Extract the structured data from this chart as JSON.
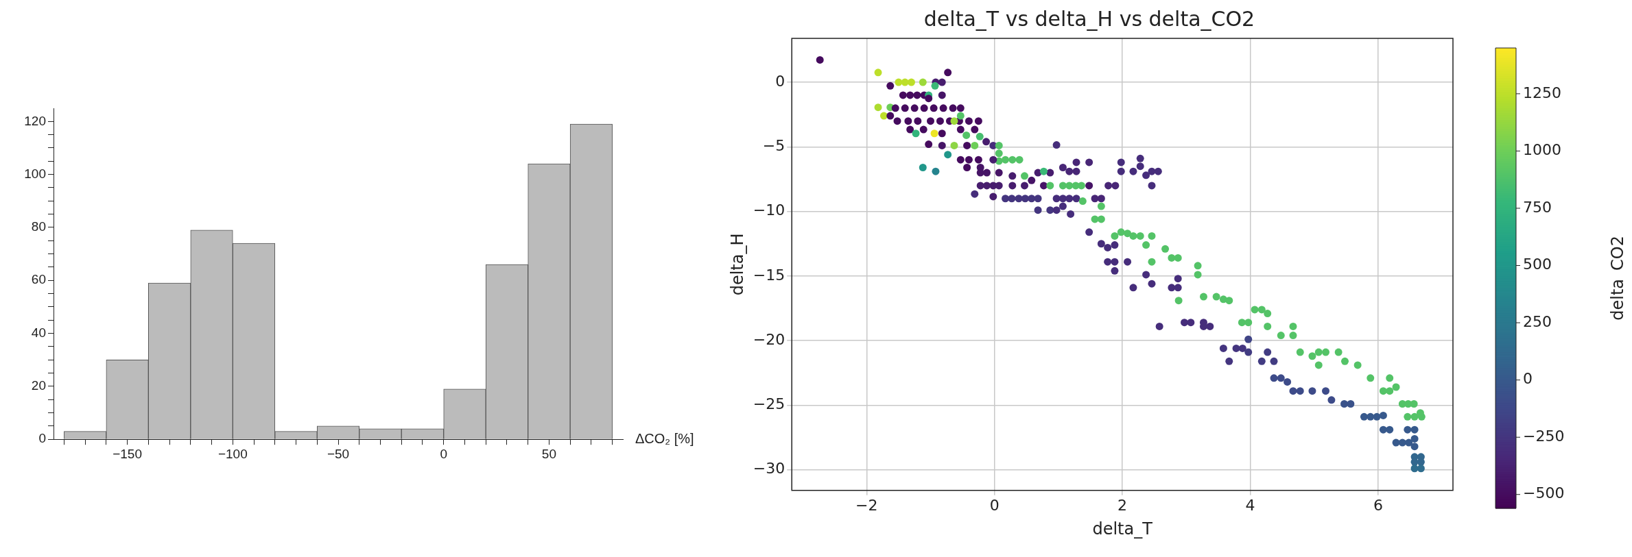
{
  "chart_data": [
    {
      "type": "histogram",
      "xlabel": "ΔCO₂ [%]",
      "color": "#bbbbbb",
      "bins": [
        -180,
        -160,
        -140,
        -120,
        -100,
        -80,
        -60,
        -40,
        -20,
        0,
        20,
        40,
        60,
        80
      ],
      "values": [
        3,
        30,
        59,
        79,
        74,
        3,
        5,
        4,
        4,
        19,
        66,
        104,
        119
      ],
      "xlim": [
        -185,
        85
      ],
      "ylim": [
        0,
        125
      ],
      "xticks": [
        {
          "value": -180,
          "label": null
        },
        {
          "value": -170,
          "label": null
        },
        {
          "value": -160,
          "label": null
        },
        -150,
        {
          "value": -140,
          "label": null
        },
        {
          "value": -130,
          "label": null
        },
        {
          "value": -120,
          "label": null
        },
        {
          "value": -110,
          "label": null
        },
        -100,
        {
          "value": -90,
          "label": null
        },
        {
          "value": -80,
          "label": null
        },
        {
          "value": -70,
          "label": null
        },
        {
          "value": -60,
          "label": null
        },
        -50,
        {
          "value": -40,
          "label": null
        },
        {
          "value": -30,
          "label": null
        },
        {
          "value": -20,
          "label": null
        },
        {
          "value": -10,
          "label": null
        },
        0,
        {
          "value": 10,
          "label": null
        },
        {
          "value": 20,
          "label": null
        },
        {
          "value": 30,
          "label": null
        },
        {
          "value": 40,
          "label": null
        },
        50,
        {
          "value": 60,
          "label": null
        },
        {
          "value": 70,
          "label": null
        },
        {
          "value": 80,
          "label": null
        }
      ],
      "yticks": [
        0,
        {
          "value": 5,
          "label": null
        },
        {
          "value": 10,
          "label": null
        },
        {
          "value": 15,
          "label": null
        },
        20,
        {
          "value": 25,
          "label": null
        },
        {
          "value": 30,
          "label": null
        },
        {
          "value": 35,
          "label": null
        },
        40,
        {
          "value": 45,
          "label": null
        },
        {
          "value": 50,
          "label": null
        },
        {
          "value": 55,
          "label": null
        },
        60,
        {
          "value": 65,
          "label": null
        },
        {
          "value": 70,
          "label": null
        },
        {
          "value": 75,
          "label": null
        },
        80,
        {
          "value": 85,
          "label": null
        },
        {
          "value": 90,
          "label": null
        },
        {
          "value": 95,
          "label": null
        },
        100,
        {
          "value": 105,
          "label": null
        },
        {
          "value": 110,
          "label": null
        },
        {
          "value": 115,
          "label": null
        },
        120
      ],
      "grid": false
    },
    {
      "type": "scatter",
      "title": "delta_T vs delta_H vs delta_CO2",
      "xlabel": "delta_T",
      "ylabel": "delta_H",
      "clabel": "delta_CO2",
      "marker": "circle",
      "grid": true,
      "xlim": [
        -3.17,
        7.17
      ],
      "ylim": [
        -31.6,
        3.4
      ],
      "xticks": [
        -2,
        0,
        2,
        4,
        6
      ],
      "yticks": [
        -30,
        -25,
        -20,
        -15,
        -10,
        -5,
        0
      ],
      "clim": [
        -560,
        1450
      ],
      "cticks": [
        -500,
        -250,
        0,
        250,
        500,
        750,
        1000,
        1250
      ],
      "x": [
        -2.73,
        -1.82,
        -0.73,
        -1.63,
        -1.5,
        -1.4,
        -1.3,
        -1.12,
        -0.92,
        -0.82,
        -0.93,
        -1.43,
        -1.32,
        -1.21,
        -1.1,
        -1.03,
        -0.82,
        -1.03,
        -1.82,
        -1.63,
        -1.55,
        -1.4,
        -1.25,
        -1.1,
        -0.95,
        -0.8,
        -0.65,
        -0.53,
        -1.73,
        -1.63,
        -1.52,
        -1.35,
        -1.2,
        -1.0,
        -0.85,
        -0.7,
        -0.55,
        -0.4,
        -0.25,
        -0.63,
        -0.53,
        -1.32,
        -1.23,
        -1.11,
        -0.94,
        -0.82,
        -0.53,
        -0.44,
        -0.31,
        -0.23,
        -1.03,
        -0.82,
        -0.73,
        -0.63,
        -0.43,
        -0.31,
        -0.13,
        -0.02,
        0.07,
        0.07,
        0.07,
        -0.53,
        -0.4,
        -0.25,
        -0.02,
        0.17,
        0.28,
        0.39,
        -1.12,
        -0.92,
        -0.43,
        -0.22,
        -0.22,
        -0.12,
        0.07,
        0.68,
        0.87,
        0.77,
        0.28,
        0.47,
        0.58,
        1.07,
        1.28,
        1.48,
        1.17,
        1.28,
        0.97,
        -0.22,
        -0.12,
        -0.02,
        0.07,
        0.28,
        0.47,
        0.77,
        0.87,
        1.07,
        1.17,
        1.27,
        1.36,
        1.48,
        1.78,
        1.89,
        -0.31,
        -0.02,
        0.17,
        0.27,
        0.38,
        0.48,
        0.58,
        0.68,
        0.97,
        1.07,
        1.17,
        1.28,
        1.38,
        1.57,
        1.67,
        0.68,
        0.87,
        0.97,
        1.07,
        1.19,
        1.67,
        1.57,
        1.67,
        1.48,
        1.98,
        1.98,
        2.17,
        2.28,
        2.28,
        2.37,
        2.46,
        2.56,
        2.46,
        1.67,
        1.77,
        1.88,
        1.77,
        1.88,
        1.88,
        2.08,
        1.88,
        1.98,
        2.08,
        2.17,
        2.28,
        2.46,
        2.37,
        2.46,
        2.67,
        2.77,
        2.87,
        2.37,
        2.46,
        2.17,
        2.77,
        2.87,
        2.87,
        2.58,
        2.97,
        3.07,
        3.27,
        3.27,
        3.37,
        2.88,
        3.18,
        3.18,
        3.27,
        3.47,
        3.58,
        3.67,
        4.07,
        4.18,
        4.27,
        3.87,
        3.97,
        4.27,
        4.48,
        4.67,
        4.67,
        3.97,
        3.58,
        3.78,
        3.88,
        3.67,
        3.97,
        4.27,
        4.18,
        4.37,
        4.37,
        4.48,
        4.58,
        4.67,
        4.78,
        4.97,
        5.18,
        5.27,
        5.47,
        5.57,
        4.78,
        4.97,
        5.07,
        5.18,
        5.07,
        5.38,
        5.48,
        5.68,
        5.88,
        6.18,
        6.08,
        6.18,
        6.28,
        6.38,
        6.47,
        6.56,
        6.46,
        6.57,
        6.68,
        6.66,
        5.78,
        5.88,
        5.98,
        6.08,
        6.08,
        6.18,
        6.46,
        6.57,
        6.28,
        6.38,
        6.48,
        6.57,
        6.57,
        6.57,
        6.67,
        6.57,
        6.67,
        6.57,
        6.67
      ],
      "values": [
        1.73,
        0.76,
        0.76,
        -0.28,
        0,
        0,
        0,
        0,
        0,
        0,
        -0.28,
        -1,
        -1,
        -1,
        -1,
        -1,
        -1,
        -1.25,
        -1.94,
        -1.94,
        -2,
        -2,
        -2,
        -2,
        -2,
        -2,
        -2,
        -2,
        -2.6,
        -2.6,
        -3,
        -3,
        -3,
        -3,
        -3,
        -3,
        -3,
        -3,
        -3,
        -3,
        -2.6,
        -3.66,
        -3.96,
        -3.66,
        -3.96,
        -3.96,
        -3.66,
        -4.1,
        -3.66,
        -4.2,
        -4.8,
        -4.9,
        -5.6,
        -4.9,
        -4.9,
        -4.9,
        -4.6,
        -4.9,
        -4.9,
        -5.5,
        -6.1,
        -6,
        -6,
        -6,
        -6,
        -6,
        -6,
        -6,
        -6.6,
        -6.9,
        -6.6,
        -6.6,
        -7,
        -7,
        -7,
        -7,
        -7,
        -6.9,
        -7.25,
        -7.25,
        -7.6,
        -6.6,
        -6.2,
        -6.2,
        -6.9,
        -6.9,
        -4.85,
        -8,
        -8,
        -8,
        -8,
        -8,
        -8,
        -8,
        -8,
        -8,
        -8,
        -8,
        -8,
        -8,
        -8,
        -8,
        -8.65,
        -8.85,
        -9,
        -9,
        -9,
        -9,
        -9,
        -9,
        -9,
        -9,
        -9,
        -9,
        -9.2,
        -9,
        -9,
        -9.9,
        -9.9,
        -9.9,
        -9.6,
        -10.2,
        -9.6,
        -10.6,
        -10.6,
        -11.6,
        -6.2,
        -6.9,
        -6.9,
        -5.9,
        -6.5,
        -7.2,
        -6.9,
        -6.9,
        -8,
        -12.5,
        -12.8,
        -12.6,
        -13.9,
        -13.9,
        -14.6,
        -13.9,
        -11.9,
        -11.6,
        -11.7,
        -11.9,
        -11.9,
        -11.9,
        -12.6,
        -13.9,
        -12.9,
        -13.6,
        -13.6,
        -14.9,
        -15.6,
        -15.9,
        -15.9,
        -15.9,
        -15.2,
        -18.9,
        -18.6,
        -18.6,
        -18.6,
        -18.9,
        -18.9,
        -16.9,
        -14.2,
        -14.9,
        -16.6,
        -16.6,
        -16.8,
        -16.9,
        -17.6,
        -17.6,
        -17.9,
        -18.6,
        -18.6,
        -18.9,
        -19.6,
        -18.9,
        -19.6,
        -19.9,
        -20.6,
        -20.6,
        -20.6,
        -21.6,
        -20.9,
        -20.9,
        -21.6,
        -21.6,
        -22.9,
        -22.9,
        -23.2,
        -23.9,
        -23.9,
        -23.9,
        -23.9,
        -24.6,
        -24.9,
        -24.9,
        -20.9,
        -21.2,
        -20.9,
        -20.9,
        -21.9,
        -20.9,
        -21.6,
        -21.9,
        -22.9,
        -22.9,
        -23.9,
        -23.9,
        -23.6,
        -24.9,
        -24.9,
        -24.9,
        -25.9,
        -25.9,
        -25.9,
        -25.6,
        -25.9,
        -25.9,
        -25.9,
        -25.8,
        -26.9,
        -26.9,
        -26.9,
        -26.9,
        -27.9,
        -27.9,
        -27.9,
        -27.6,
        -28.2,
        -29,
        -29,
        -29.4,
        -29.4,
        -29.9,
        -29.9
      ],
      "cvalues": [
        -500,
        1250,
        -500,
        -500,
        1250,
        1250,
        1250,
        1150,
        -400,
        -400,
        800,
        -500,
        -500,
        -500,
        -500,
        750,
        -450,
        -500,
        1200,
        1000,
        -500,
        -500,
        -500,
        -500,
        -500,
        -500,
        -500,
        -500,
        1250,
        -500,
        -500,
        -500,
        -500,
        -500,
        -500,
        -500,
        -500,
        -500,
        -500,
        1150,
        900,
        -500,
        750,
        -500,
        1400,
        -500,
        -500,
        900,
        -500,
        850,
        -500,
        -450,
        500,
        1100,
        -500,
        1000,
        -400,
        -300,
        900,
        900,
        900,
        -500,
        -500,
        -500,
        -400,
        900,
        900,
        900,
        500,
        350,
        -500,
        -450,
        -450,
        -450,
        -450,
        -400,
        -400,
        800,
        -400,
        900,
        -450,
        -350,
        -350,
        -350,
        -350,
        -350,
        -300,
        -400,
        -400,
        -400,
        -400,
        -400,
        -400,
        -450,
        900,
        900,
        900,
        900,
        900,
        -450,
        -350,
        -350,
        -300,
        -400,
        -250,
        -250,
        -250,
        -250,
        -250,
        -250,
        -300,
        -300,
        -300,
        -300,
        900,
        -350,
        -350,
        -250,
        -250,
        -300,
        -300,
        -300,
        900,
        900,
        900,
        -300,
        -300,
        -300,
        -300,
        -300,
        -300,
        -300,
        -300,
        -300,
        -300,
        -300,
        -300,
        -300,
        -300,
        -300,
        -300,
        -300,
        900,
        900,
        900,
        900,
        900,
        900,
        900,
        900,
        900,
        900,
        900,
        -300,
        -300,
        -300,
        -300,
        -300,
        -300,
        -300,
        -300,
        -300,
        -300,
        -300,
        -300,
        900,
        900,
        900,
        900,
        900,
        900,
        900,
        900,
        900,
        900,
        900,
        900,
        900,
        900,
        900,
        900,
        -150,
        -250,
        -250,
        -250,
        -250,
        -200,
        -200,
        -200,
        -200,
        -100,
        -100,
        -100,
        -100,
        -100,
        -100,
        -100,
        -100,
        -50,
        -50,
        900,
        900,
        900,
        900,
        900,
        900,
        900,
        900,
        900,
        900,
        900,
        900,
        900,
        900,
        900,
        900,
        900,
        900,
        900,
        900,
        0,
        0,
        0,
        0,
        0,
        0,
        0,
        0,
        0,
        0,
        0,
        0,
        0,
        100,
        100,
        100,
        100,
        150,
        150
      ]
    }
  ]
}
